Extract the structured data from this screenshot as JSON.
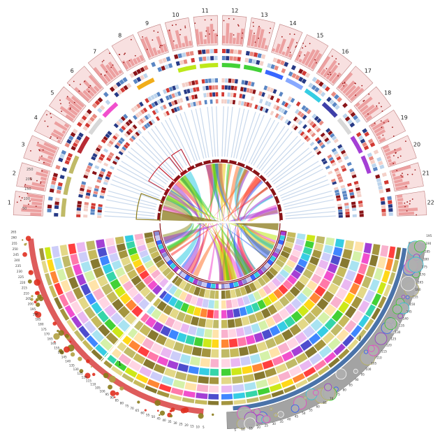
{
  "upper_hemisphere": {
    "chromosomes": [
      {
        "label": "1",
        "color": "#b9b256"
      },
      {
        "label": "2",
        "color": "#b9b256"
      },
      {
        "label": "3",
        "color": "#b9b256"
      },
      {
        "label": "4",
        "color": "#b0141e"
      },
      {
        "label": "5",
        "color": "#d4d4d4"
      },
      {
        "label": "6",
        "color": "#f03cc8"
      },
      {
        "label": "7",
        "color": "#ffffff"
      },
      {
        "label": "8",
        "color": "#f0a400"
      },
      {
        "label": "9",
        "color": "#ffffff"
      },
      {
        "label": "10",
        "color": "#b7e600"
      },
      {
        "label": "11",
        "color": "#b7e600"
      },
      {
        "label": "12",
        "color": "#2ecc20"
      },
      {
        "label": "13",
        "color": "#2ecc20"
      },
      {
        "label": "14",
        "color": "#2256ff"
      },
      {
        "label": "15",
        "color": "#7aa0ff"
      },
      {
        "label": "16",
        "color": "#20c8e0"
      },
      {
        "label": "17",
        "color": "#2a2aa0"
      },
      {
        "label": "18",
        "color": "#d4d4d4"
      },
      {
        "label": "19",
        "color": "#9a2ad0"
      },
      {
        "label": "20",
        "color": "#9a2ad0"
      },
      {
        "label": "21",
        "color": "#ffffff"
      },
      {
        "label": "22",
        "color": "#ffffff"
      }
    ],
    "ring_tick_labels": [
      "50",
      "100",
      "150",
      "200",
      "250"
    ]
  },
  "lower_left_segment": {
    "label": "1",
    "scale_labels": [
      "265",
      "260",
      "255",
      "250",
      "245",
      "240",
      "235",
      "230",
      "225",
      "220",
      "215",
      "210",
      "205",
      "200",
      "195",
      "190",
      "185",
      "180",
      "175",
      "170",
      "165",
      "160",
      "155",
      "150",
      "145",
      "140",
      "135",
      "130",
      "125",
      "120",
      "115",
      "110",
      "105",
      "100",
      "95",
      "90",
      "85",
      "80",
      "75",
      "70",
      "65",
      "60",
      "55",
      "50",
      "45",
      "40",
      "35",
      "30",
      "25",
      "20",
      "15",
      "10",
      "5"
    ]
  },
  "lower_right_segment": {
    "label": "J",
    "scale_labels": [
      "195",
      "190",
      "185",
      "180",
      "175",
      "170",
      "165",
      "160",
      "155",
      "150",
      "145",
      "140",
      "135",
      "130",
      "125",
      "120",
      "115",
      "110",
      "105",
      "100",
      "95",
      "90",
      "85",
      "80",
      "75",
      "70",
      "65",
      "60",
      "55",
      "50",
      "45",
      "40",
      "35",
      "30",
      "25",
      "20",
      "15",
      "10",
      "5"
    ]
  },
  "palette": [
    "#e8c0c0",
    "#f2a0a0",
    "#e63030",
    "#9a1010",
    "#2a3c8a",
    "#6a9ad0",
    "#c8dcf0",
    "#f0d8c8",
    "#8a8a1a",
    "#b9b256",
    "#f03cc8",
    "#f0a400",
    "#b7e600",
    "#2ecc20",
    "#2256ff",
    "#20c8e0",
    "#9a2ad0",
    "#ff3a2a",
    "#ffea60",
    "#808080"
  ]
}
